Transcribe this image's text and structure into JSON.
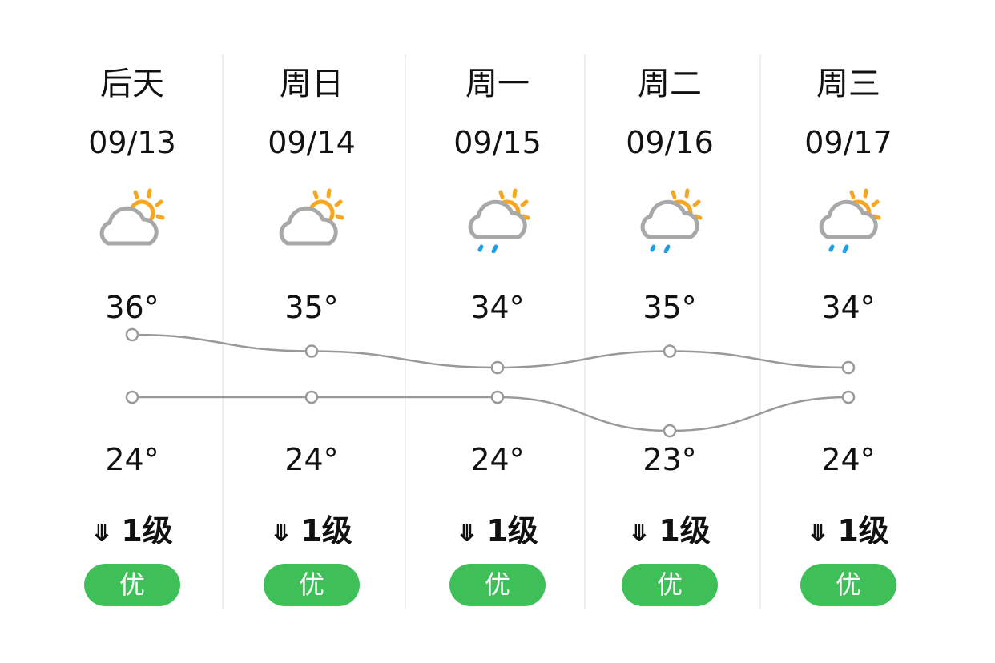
{
  "colors": {
    "badge": "#3fbf58",
    "line": "#999999",
    "sun": "#f5a623",
    "cloud": "#a8a8a8",
    "rain": "#1ea0e6"
  },
  "days": [
    {
      "weekday": "后天",
      "date": "09/13",
      "icon": "partly-cloudy-icon",
      "high": "36°",
      "low": "24°",
      "wind": "1级",
      "aqi": "优"
    },
    {
      "weekday": "周日",
      "date": "09/14",
      "icon": "partly-cloudy-icon",
      "high": "35°",
      "low": "24°",
      "wind": "1级",
      "aqi": "优"
    },
    {
      "weekday": "周一",
      "date": "09/15",
      "icon": "sun-shower-icon",
      "high": "34°",
      "low": "24°",
      "wind": "1级",
      "aqi": "优"
    },
    {
      "weekday": "周二",
      "date": "09/16",
      "icon": "sun-shower-icon",
      "high": "35°",
      "low": "23°",
      "wind": "1级",
      "aqi": "优"
    },
    {
      "weekday": "周三",
      "date": "09/17",
      "icon": "sun-shower-icon",
      "high": "34°",
      "low": "24°",
      "wind": "1级",
      "aqi": "优"
    }
  ],
  "chart_data": {
    "type": "line",
    "categories": [
      "09/13",
      "09/14",
      "09/15",
      "09/16",
      "09/17"
    ],
    "series": [
      {
        "values": [
          36,
          35,
          34,
          35,
          34
        ]
      },
      {
        "values": [
          24,
          24,
          24,
          23,
          24
        ]
      }
    ]
  }
}
